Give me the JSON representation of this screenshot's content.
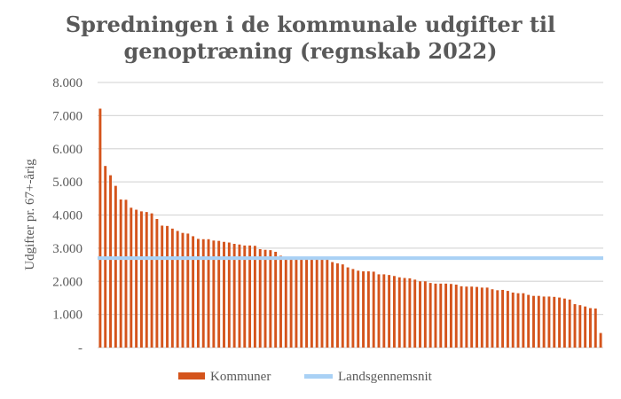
{
  "chart_data": {
    "type": "bar",
    "title_lines": [
      "Spredningen i de kommunale udgifter til",
      "genoptræning (regnskab 2022)"
    ],
    "xlabel": "",
    "ylabel": "Udgifter pr. 67+-årig",
    "ylim": [
      0,
      8000
    ],
    "yticks": [
      0,
      1000,
      2000,
      3000,
      4000,
      5000,
      6000,
      7000,
      8000
    ],
    "ytick_labels": [
      "-",
      "1.000",
      "2.000",
      "3.000",
      "4.000",
      "5.000",
      "6.000",
      "7.000",
      "8.000"
    ],
    "grid": true,
    "legend_position": "bottom",
    "series": [
      {
        "name": "Kommuner",
        "type": "bar",
        "color": "#D4541C",
        "values": [
          7210,
          5480,
          5200,
          4880,
          4470,
          4460,
          4220,
          4160,
          4110,
          4090,
          4050,
          3880,
          3680,
          3670,
          3590,
          3520,
          3460,
          3440,
          3360,
          3280,
          3270,
          3270,
          3230,
          3220,
          3190,
          3170,
          3130,
          3110,
          3080,
          3080,
          3070,
          2970,
          2950,
          2940,
          2890,
          2770,
          2740,
          2720,
          2700,
          2700,
          2690,
          2680,
          2680,
          2670,
          2660,
          2580,
          2540,
          2510,
          2420,
          2370,
          2320,
          2300,
          2300,
          2290,
          2210,
          2210,
          2190,
          2160,
          2120,
          2100,
          2090,
          2050,
          2000,
          2000,
          1950,
          1930,
          1930,
          1930,
          1920,
          1900,
          1850,
          1840,
          1840,
          1830,
          1810,
          1810,
          1760,
          1730,
          1740,
          1710,
          1660,
          1640,
          1640,
          1590,
          1560,
          1560,
          1540,
          1540,
          1530,
          1510,
          1480,
          1450,
          1310,
          1280,
          1240,
          1190,
          1180,
          440
        ]
      },
      {
        "name": "Landsgennemsnit",
        "type": "line",
        "color": "#A9D1F5",
        "value": 2700
      }
    ]
  }
}
